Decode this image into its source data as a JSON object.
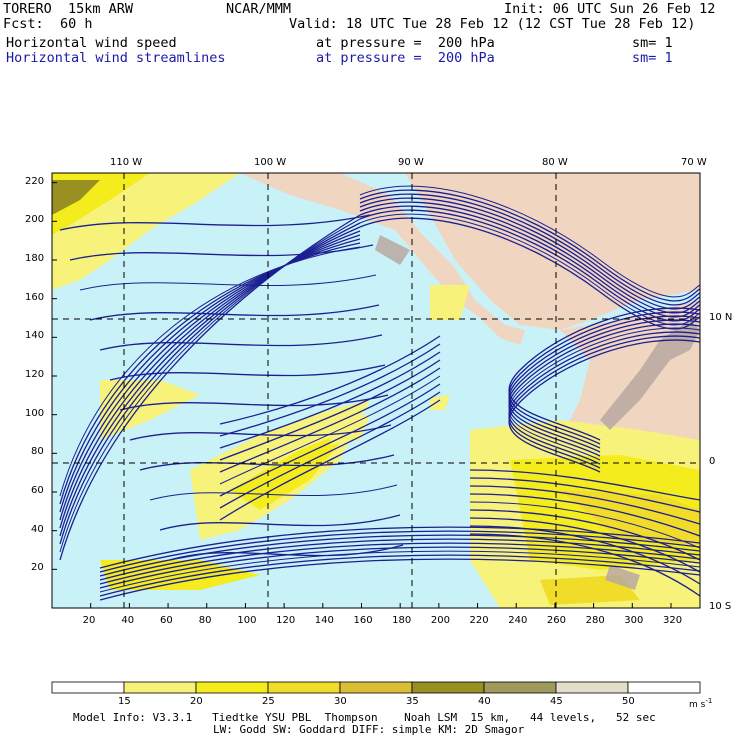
{
  "header": {
    "model": "TORERO  15km ARW",
    "org": "NCAR/MMM",
    "init": "Init: 06 UTC Sun 26 Feb 12",
    "fcst_label": "Fcst:",
    "fcst_value": "60 h",
    "valid": "Valid: 18 UTC Tue 28 Feb 12 (12 CST Tue 28 Feb 12)",
    "field1_name": "Horizontal wind speed",
    "field1_level": "at pressure =  200 hPa",
    "field1_sm": "sm= 1",
    "field2_name": "Horizontal wind streamlines",
    "field2_level": "at pressure =  200 hPa",
    "field2_sm": "sm= 1"
  },
  "chart_data": {
    "type": "heatmap",
    "title": "Horizontal wind speed / Horizontal wind streamlines at pressure = 200 hPa",
    "x_ticks": [
      "20",
      "40",
      "60",
      "80",
      "100",
      "120",
      "140",
      "160",
      "180",
      "200",
      "220",
      "240",
      "260",
      "280",
      "300",
      "320"
    ],
    "y_ticks": [
      "20",
      "40",
      "60",
      "80",
      "100",
      "120",
      "140",
      "160",
      "180",
      "200",
      "220"
    ],
    "xlim": [
      0,
      335
    ],
    "ylim": [
      0,
      225
    ],
    "lon_labels": [
      "110 W",
      "100 W",
      "90 W",
      "80 W",
      "70 W"
    ],
    "lat_labels": [
      "10 N",
      "0",
      "10 S"
    ],
    "grid": true,
    "colorbar": {
      "levels": [
        "15",
        "20",
        "25",
        "30",
        "35",
        "40",
        "45",
        "50"
      ],
      "units": "m s",
      "units_exp": "-1",
      "colors": [
        "#ffffff",
        "#f6f27a",
        "#f4ec1c",
        "#f2dc2a",
        "#dcbe36",
        "#9a9022",
        "#9e9a5e",
        "#e2deca",
        "#ffffff"
      ]
    },
    "fill_colors": {
      "background": "#c8f2f8",
      "land": "#f0d6c0",
      "high_terrain": "#b8a8a0",
      "streamline": "#1c1f92"
    }
  },
  "footer": {
    "line1": "Model Info: V3.3.1   Tiedtke YSU PBL  Thompson    Noah LSM  15 km,   44 levels,   52 sec",
    "line2": "LW: Godd SW: Goddard DIFF: simple KM: 2D Smagor"
  }
}
